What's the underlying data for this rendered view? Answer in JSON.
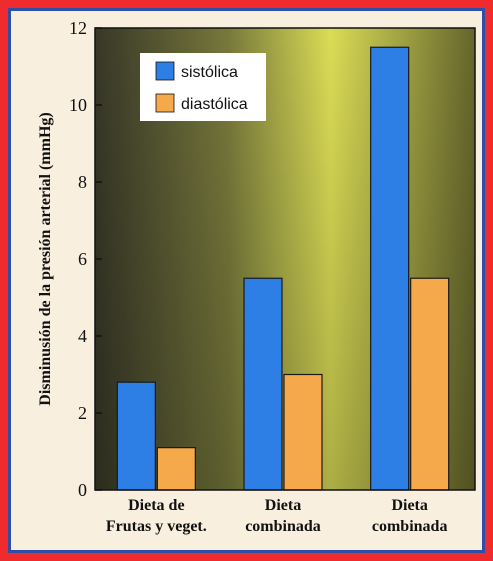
{
  "chart_data": {
    "type": "bar",
    "title": "",
    "xlabel": "",
    "ylabel": "Disminusión de la presión arterial (mmHg)",
    "ylim": [
      0,
      12
    ],
    "yticks": [
      "0",
      "2",
      "4",
      "6",
      "8",
      "10",
      "12"
    ],
    "categories": [
      [
        "Dieta de",
        "Frutas y veget."
      ],
      [
        "Dieta",
        "combinada"
      ],
      [
        "Dieta",
        "combinada"
      ]
    ],
    "series": [
      {
        "name": "sistólica",
        "color": "#2d7fe6",
        "values": [
          2.8,
          5.5,
          11.5
        ]
      },
      {
        "name": "diastólica",
        "color": "#f6a94a",
        "values": [
          1.1,
          3.0,
          5.5
        ]
      }
    ],
    "legend": "top-left",
    "grid": false,
    "background": "gradient dark to yellow"
  }
}
